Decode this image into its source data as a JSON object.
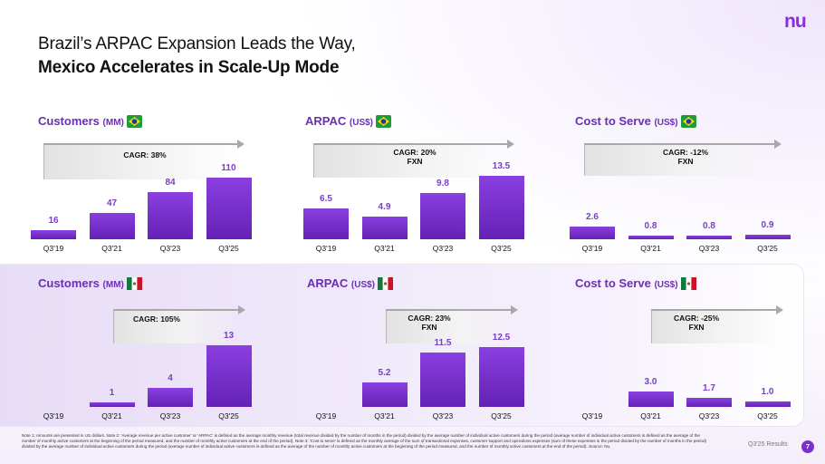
{
  "logo": "nu",
  "title": {
    "line1": "Brazil’s ARPAC Expansion Leads the Way,",
    "line2": "Mexico Accelerates in Scale-Up Mode"
  },
  "colors": {
    "accent": "#7b2fd0",
    "bar": "#6a26bd",
    "label": "#7a3dc8"
  },
  "panels": [
    {
      "title": "Customers",
      "unit": "(MM)",
      "flag": "brazil-flag-icon",
      "cagr": "CAGR: 38%",
      "cagr_sub": "",
      "categories": [
        "Q3'19",
        "Q3'21",
        "Q3'23",
        "Q3'25"
      ],
      "values": [
        16,
        47,
        84,
        110
      ],
      "labels": [
        "16",
        "47",
        "84",
        "110"
      ]
    },
    {
      "title": "ARPAC",
      "unit": "(US$)",
      "flag": "brazil-flag-icon",
      "cagr": "CAGR: 20%",
      "cagr_sub": "FXN",
      "categories": [
        "Q3'19",
        "Q3'21",
        "Q3'23",
        "Q3'25"
      ],
      "values": [
        6.5,
        4.9,
        9.8,
        13.5
      ],
      "labels": [
        "6.5",
        "4.9",
        "9.8",
        "13.5"
      ]
    },
    {
      "title": "Cost to Serve",
      "unit": "(US$)",
      "flag": "brazil-flag-icon",
      "cagr": "CAGR: -12%",
      "cagr_sub": "FXN",
      "categories": [
        "Q3'19",
        "Q3'21",
        "Q3'23",
        "Q3'25"
      ],
      "values": [
        2.6,
        0.8,
        0.8,
        0.9
      ],
      "labels": [
        "2.6",
        "0.8",
        "0.8",
        "0.9"
      ]
    },
    {
      "title": "Customers",
      "unit": "(MM)",
      "flag": "mexico-flag-icon",
      "cagr": "CAGR: 105%",
      "cagr_sub": "",
      "categories": [
        "Q3'19",
        "Q3'21",
        "Q3'23",
        "Q3'25"
      ],
      "values": [
        0,
        1,
        4,
        13
      ],
      "labels": [
        "",
        "1",
        "4",
        "13"
      ]
    },
    {
      "title": "ARPAC",
      "unit": "(US$)",
      "flag": "mexico-flag-icon",
      "cagr": "CAGR: 23%",
      "cagr_sub": "FXN",
      "categories": [
        "Q3'19",
        "Q3'21",
        "Q3'23",
        "Q3'25"
      ],
      "values": [
        0,
        5.2,
        11.5,
        12.5
      ],
      "labels": [
        "",
        "5.2",
        "11.5",
        "12.5"
      ]
    },
    {
      "title": "Cost to Serve",
      "unit": "(US$)",
      "flag": "mexico-flag-icon",
      "cagr": "CAGR: -25%",
      "cagr_sub": "FXN",
      "categories": [
        "Q3'19",
        "Q3'21",
        "Q3'23",
        "Q3'25"
      ],
      "values": [
        0,
        3.0,
        1.7,
        1.0
      ],
      "labels": [
        "",
        "3.0",
        "1.7",
        "1.0"
      ]
    }
  ],
  "chart_data": [
    {
      "type": "bar",
      "title": "Customers (MM) Brazil",
      "categories": [
        "Q3'19",
        "Q3'21",
        "Q3'23",
        "Q3'25"
      ],
      "values": [
        16,
        47,
        84,
        110
      ],
      "annotation": "CAGR: 38%"
    },
    {
      "type": "bar",
      "title": "ARPAC (US$) Brazil",
      "categories": [
        "Q3'19",
        "Q3'21",
        "Q3'23",
        "Q3'25"
      ],
      "values": [
        6.5,
        4.9,
        9.8,
        13.5
      ],
      "annotation": "CAGR: 20% FXN"
    },
    {
      "type": "bar",
      "title": "Cost to Serve (US$) Brazil",
      "categories": [
        "Q3'19",
        "Q3'21",
        "Q3'23",
        "Q3'25"
      ],
      "values": [
        2.6,
        0.8,
        0.8,
        0.9
      ],
      "annotation": "CAGR: -12% FXN"
    },
    {
      "type": "bar",
      "title": "Customers (MM) Mexico",
      "categories": [
        "Q3'19",
        "Q3'21",
        "Q3'23",
        "Q3'25"
      ],
      "values": [
        null,
        1,
        4,
        13
      ],
      "annotation": "CAGR: 105%"
    },
    {
      "type": "bar",
      "title": "ARPAC (US$) Mexico",
      "categories": [
        "Q3'19",
        "Q3'21",
        "Q3'23",
        "Q3'25"
      ],
      "values": [
        null,
        5.2,
        11.5,
        12.5
      ],
      "annotation": "CAGR: 23% FXN"
    },
    {
      "type": "bar",
      "title": "Cost to Serve (US$) Mexico",
      "categories": [
        "Q3'19",
        "Q3'21",
        "Q3'23",
        "Q3'25"
      ],
      "values": [
        null,
        3.0,
        1.7,
        1.0
      ],
      "annotation": "CAGR: -25% FXN"
    }
  ],
  "notes": "Note 1: Amounts are presented in US dollars. Note 2: 'Average revenue per active customer' or 'ARPAC' is defined as the average monthly revenue (total revenue divided by the number of months in the period) divided by the average number of individual active customers during the period (average number of individual active customers is defined as the average of the number of monthly active customers at the beginning of the period measured, and the number of monthly active customers at the end of the period). Note 3: 'Cost to serve' is defined as the monthly average of the sum of transactional expenses, customer support and operations expenses (sum of these expenses in the period divided by the number of months in the period) divided by the average number of individual active customers during the period (average number of individual active customers is defined as the average of the number of monthly active customers at the beginning of the period measured, and the number of monthly active customers at the end of the period). Source: Nu.",
  "footer": {
    "label": "Q3'25 Results",
    "page": "7"
  }
}
